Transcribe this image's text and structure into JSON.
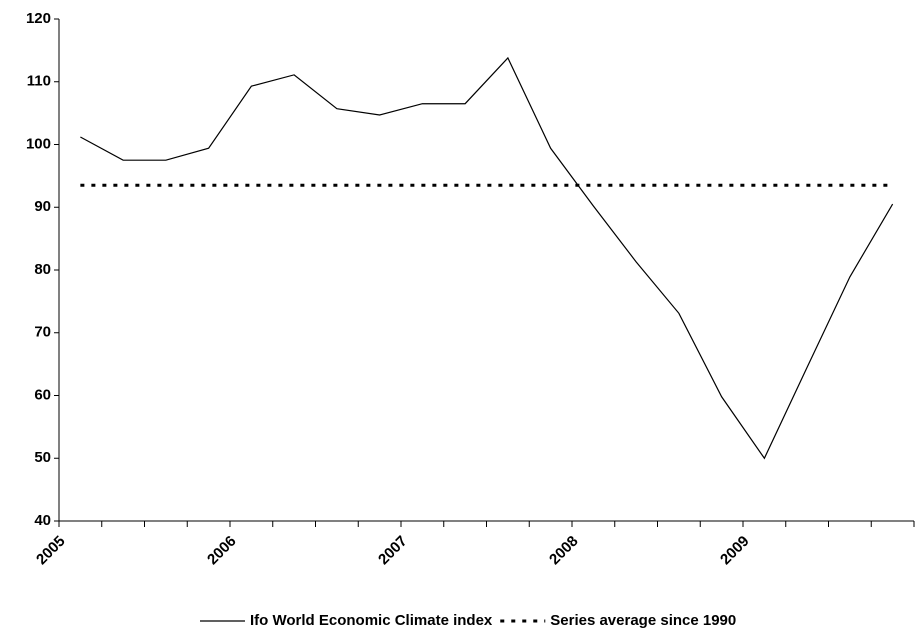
{
  "chart_data": {
    "type": "line",
    "x": [
      2005.125,
      2005.375,
      2005.625,
      2005.875,
      2006.125,
      2006.375,
      2006.625,
      2006.875,
      2007.125,
      2007.375,
      2007.625,
      2007.875,
      2008.125,
      2008.375,
      2008.625,
      2008.875,
      2009.125,
      2009.375,
      2009.625,
      2009.875
    ],
    "series": [
      {
        "name": "Ifo World Economic Climate index",
        "color": "#000000",
        "style": "solid",
        "values": [
          101.2,
          97.5,
          97.5,
          99.4,
          109.3,
          111.1,
          105.7,
          104.7,
          106.5,
          106.5,
          113.8,
          99.4,
          90.2,
          81.3,
          73.1,
          59.8,
          50.0,
          64.5,
          78.9,
          90.5
        ]
      },
      {
        "name": "Series average since 1990",
        "color": "#000000",
        "style": "dotted",
        "values": [
          93.5,
          93.5,
          93.5,
          93.5,
          93.5,
          93.5,
          93.5,
          93.5,
          93.5,
          93.5,
          93.5,
          93.5,
          93.5,
          93.5,
          93.5,
          93.5,
          93.5,
          93.5,
          93.5,
          93.5
        ]
      }
    ],
    "xlim": [
      2005,
      2010
    ],
    "xticks": [
      2005,
      2006,
      2007,
      2008,
      2009
    ],
    "ylim": [
      40,
      120
    ],
    "yticks": [
      40,
      50,
      60,
      70,
      80,
      90,
      100,
      110,
      120
    ],
    "grid": false,
    "legend": "bottom"
  }
}
